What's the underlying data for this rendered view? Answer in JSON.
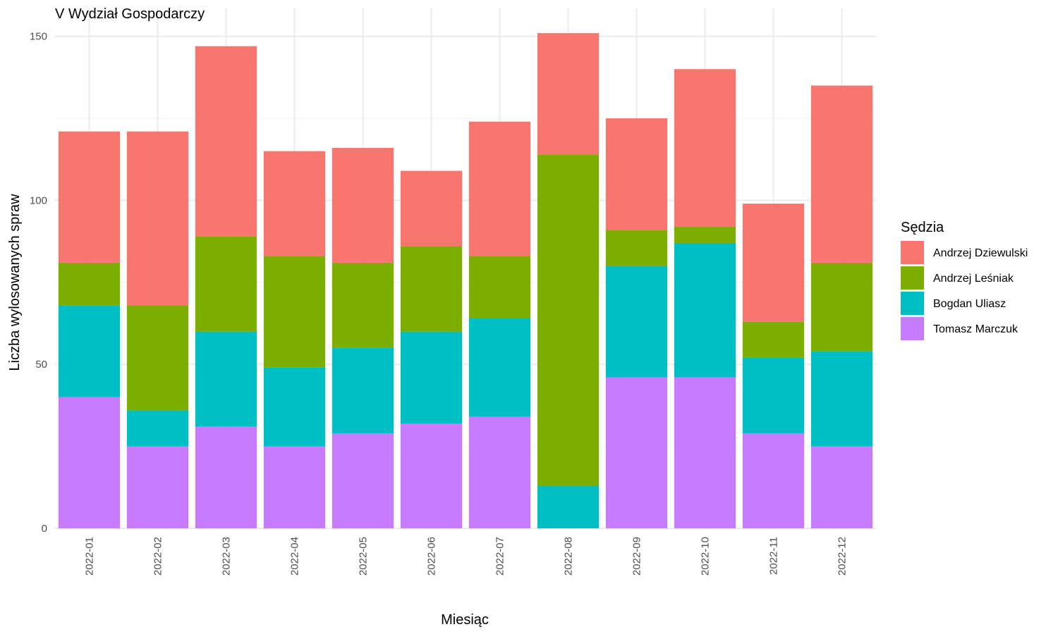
{
  "chart_data": {
    "type": "bar",
    "stacked": true,
    "title": "V Wydział Gospodarczy",
    "xlabel": "Miesiąc",
    "ylabel": "Liczba wylosowanych spraw",
    "ylim": [
      0,
      160
    ],
    "yticks": [
      0,
      50,
      100,
      150
    ],
    "grid": true,
    "legend_title": "Sędzia",
    "legend_position": "right",
    "categories": [
      "2022-01",
      "2022-02",
      "2022-03",
      "2022-04",
      "2022-05",
      "2022-06",
      "2022-07",
      "2022-08",
      "2022-09",
      "2022-10",
      "2022-11",
      "2022-12"
    ],
    "series": [
      {
        "name": "Tomasz Marczuk",
        "color": "#C77CFF",
        "values": [
          40,
          25,
          31,
          25,
          29,
          32,
          34,
          0,
          46,
          46,
          29,
          25
        ]
      },
      {
        "name": "Bogdan Uliasz",
        "color": "#00BFC4",
        "values": [
          28,
          11,
          29,
          24,
          26,
          28,
          30,
          13,
          34,
          41,
          23,
          29
        ]
      },
      {
        "name": "Andrzej Leśniak",
        "color": "#7CAE00",
        "values": [
          13,
          32,
          29,
          34,
          26,
          26,
          19,
          101,
          11,
          5,
          11,
          27
        ]
      },
      {
        "name": "Andrzej Dziewulski",
        "color": "#F8766D",
        "values": [
          40,
          53,
          58,
          32,
          35,
          23,
          41,
          37,
          34,
          48,
          36,
          54
        ]
      }
    ],
    "legend_order": [
      "Andrzej Dziewulski",
      "Andrzej Leśniak",
      "Bogdan Uliasz",
      "Tomasz Marczuk"
    ]
  }
}
